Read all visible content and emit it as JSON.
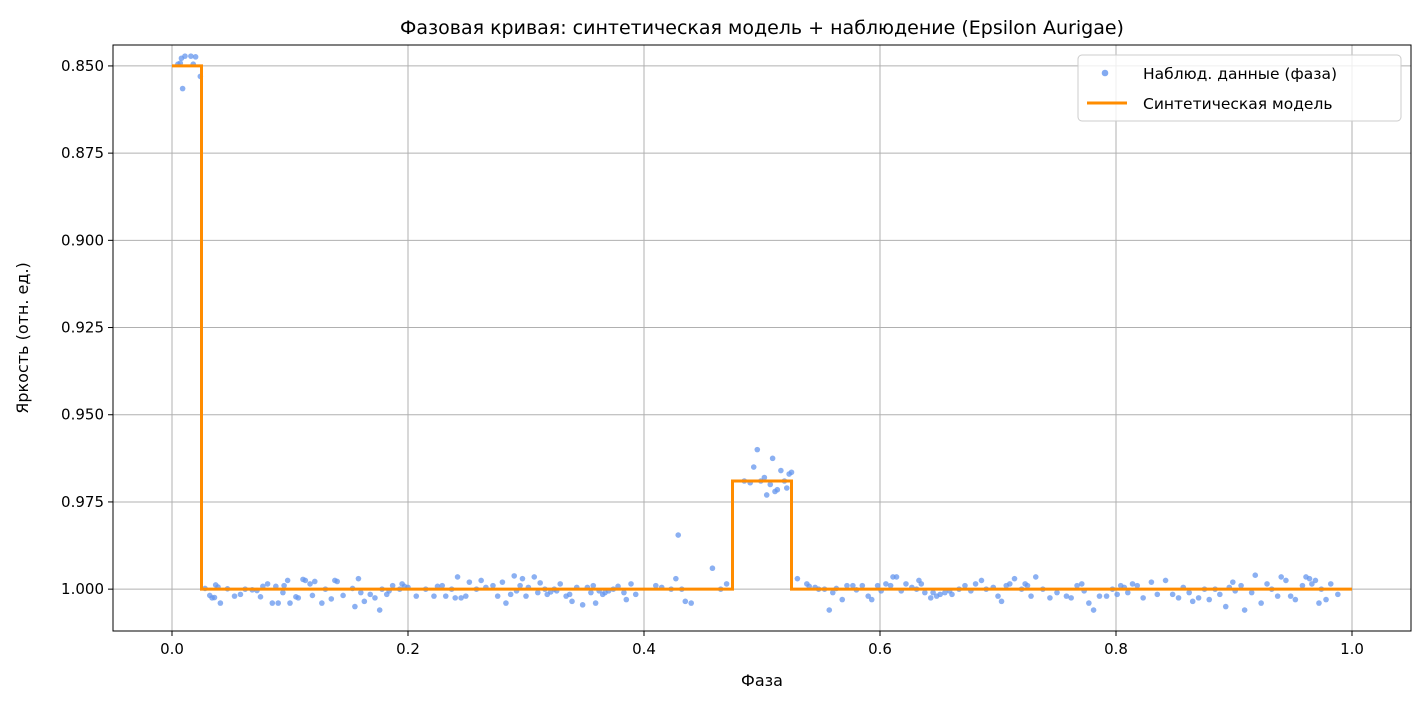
{
  "chart_data": {
    "type": "scatter",
    "title": "Фазовая кривая: синтетическая модель + наблюдение (Epsilon Aurigae)",
    "xlabel": "Фаза",
    "ylabel": "Яркость (отн. ед.)",
    "xlim": [
      -0.05,
      1.05
    ],
    "ylim": [
      1.012,
      0.844
    ],
    "y_inverted": true,
    "grid": true,
    "legend_position": "top-right",
    "x_ticks": [
      "0.0",
      "0.2",
      "0.4",
      "0.6",
      "0.8",
      "1.0"
    ],
    "x_tick_values": [
      0.0,
      0.2,
      0.4,
      0.6,
      0.8,
      1.0
    ],
    "y_ticks": [
      "0.850",
      "0.875",
      "0.900",
      "0.925",
      "0.950",
      "0.975",
      "1.000"
    ],
    "y_tick_values": [
      0.85,
      0.875,
      0.9,
      0.925,
      0.95,
      0.975,
      1.0
    ],
    "series": [
      {
        "name": "Наблюд. данные (фаза)",
        "kind": "scatter",
        "color": "#6495ed",
        "points": [
          [
            0.005,
            0.8495
          ],
          [
            0.007,
            0.8492
          ],
          [
            0.008,
            0.8478
          ],
          [
            0.011,
            0.8472
          ],
          [
            0.016,
            0.8472
          ],
          [
            0.018,
            0.8495
          ],
          [
            0.02,
            0.8474
          ],
          [
            0.024,
            0.853
          ],
          [
            0.009,
            0.8565
          ],
          [
            0.028,
            0.9998
          ],
          [
            0.032,
            1.0018
          ],
          [
            0.034,
            1.0025
          ],
          [
            0.036,
            1.0024
          ],
          [
            0.037,
            0.9988
          ],
          [
            0.039,
            0.9994
          ],
          [
            0.041,
            1.004
          ],
          [
            0.047,
            0.9999
          ],
          [
            0.053,
            1.002
          ],
          [
            0.058,
            1.0015
          ],
          [
            0.062,
            1.0
          ],
          [
            0.068,
            1.0002
          ],
          [
            0.072,
            1.0004
          ],
          [
            0.075,
            1.0022
          ],
          [
            0.077,
            0.9992
          ],
          [
            0.081,
            0.9985
          ],
          [
            0.085,
            1.004
          ],
          [
            0.088,
            0.9992
          ],
          [
            0.09,
            1.004
          ],
          [
            0.094,
            1.001
          ],
          [
            0.095,
            0.999
          ],
          [
            0.098,
            0.9975
          ],
          [
            0.1,
            1.004
          ],
          [
            0.105,
            1.0022
          ],
          [
            0.107,
            1.0025
          ],
          [
            0.111,
            0.9972
          ],
          [
            0.113,
            0.9975
          ],
          [
            0.117,
            0.9985
          ],
          [
            0.119,
            1.0018
          ],
          [
            0.121,
            0.9978
          ],
          [
            0.127,
            1.004
          ],
          [
            0.13,
            1.0
          ],
          [
            0.135,
            1.0028
          ],
          [
            0.138,
            0.9975
          ],
          [
            0.14,
            0.9978
          ],
          [
            0.145,
            1.0018
          ],
          [
            0.153,
            0.9998
          ],
          [
            0.155,
            1.005
          ],
          [
            0.158,
            0.997
          ],
          [
            0.16,
            1.001
          ],
          [
            0.163,
            1.0035
          ],
          [
            0.168,
            1.0015
          ],
          [
            0.172,
            1.0025
          ],
          [
            0.176,
            1.006
          ],
          [
            0.178,
            1.0
          ],
          [
            0.182,
            1.0015
          ],
          [
            0.184,
            1.0005
          ],
          [
            0.187,
            0.999
          ],
          [
            0.193,
            1.0
          ],
          [
            0.195,
            0.9985
          ],
          [
            0.197,
            0.9992
          ],
          [
            0.2,
            0.9995
          ],
          [
            0.207,
            1.002
          ],
          [
            0.215,
            1.0
          ],
          [
            0.222,
            1.002
          ],
          [
            0.225,
            0.9992
          ],
          [
            0.229,
            0.999
          ],
          [
            0.232,
            1.002
          ],
          [
            0.237,
            1.0
          ],
          [
            0.24,
            1.0025
          ],
          [
            0.242,
            0.9965
          ],
          [
            0.245,
            1.0025
          ],
          [
            0.249,
            1.002
          ],
          [
            0.252,
            0.998
          ],
          [
            0.258,
            1.0
          ],
          [
            0.262,
            0.9975
          ],
          [
            0.266,
            0.9995
          ],
          [
            0.272,
            0.999
          ],
          [
            0.276,
            1.002
          ],
          [
            0.28,
            0.998
          ],
          [
            0.283,
            1.004
          ],
          [
            0.287,
            1.0015
          ],
          [
            0.29,
            0.9962
          ],
          [
            0.292,
            1.0005
          ],
          [
            0.295,
            0.999
          ],
          [
            0.297,
            0.997
          ],
          [
            0.3,
            1.002
          ],
          [
            0.302,
            0.9995
          ],
          [
            0.307,
            0.9965
          ],
          [
            0.31,
            1.001
          ],
          [
            0.312,
            0.9982
          ],
          [
            0.316,
            1.0
          ],
          [
            0.318,
            1.0015
          ],
          [
            0.321,
            1.0008
          ],
          [
            0.324,
            1.0
          ],
          [
            0.326,
            1.0005
          ],
          [
            0.329,
            0.9985
          ],
          [
            0.334,
            1.002
          ],
          [
            0.337,
            1.0015
          ],
          [
            0.339,
            1.0035
          ],
          [
            0.343,
            0.9995
          ],
          [
            0.348,
            1.0045
          ],
          [
            0.352,
            0.9995
          ],
          [
            0.355,
            1.001
          ],
          [
            0.357,
            0.999
          ],
          [
            0.359,
            1.004
          ],
          [
            0.362,
            1.0005
          ],
          [
            0.365,
            1.0015
          ],
          [
            0.367,
            1.001
          ],
          [
            0.37,
            1.0005
          ],
          [
            0.374,
            1.0
          ],
          [
            0.378,
            0.9992
          ],
          [
            0.383,
            1.001
          ],
          [
            0.385,
            1.003
          ],
          [
            0.389,
            0.9985
          ],
          [
            0.393,
            1.0015
          ],
          [
            0.41,
            0.999
          ],
          [
            0.415,
            0.9995
          ],
          [
            0.423,
            1.0
          ],
          [
            0.427,
            0.997
          ],
          [
            0.429,
            0.9845
          ],
          [
            0.432,
            1.0
          ],
          [
            0.435,
            1.0035
          ],
          [
            0.44,
            1.004
          ],
          [
            0.458,
            0.994
          ],
          [
            0.465,
            1.0
          ],
          [
            0.47,
            0.9985
          ],
          [
            0.485,
            0.969
          ],
          [
            0.49,
            0.9695
          ],
          [
            0.493,
            0.965
          ],
          [
            0.496,
            0.96
          ],
          [
            0.499,
            0.969
          ],
          [
            0.502,
            0.968
          ],
          [
            0.504,
            0.973
          ],
          [
            0.507,
            0.97
          ],
          [
            0.509,
            0.9625
          ],
          [
            0.511,
            0.972
          ],
          [
            0.513,
            0.9715
          ],
          [
            0.516,
            0.966
          ],
          [
            0.519,
            0.969
          ],
          [
            0.521,
            0.971
          ],
          [
            0.523,
            0.967
          ],
          [
            0.525,
            0.9665
          ],
          [
            0.53,
            0.997
          ],
          [
            0.538,
            0.9985
          ],
          [
            0.54,
            0.9992
          ],
          [
            0.545,
            0.9995
          ],
          [
            0.548,
            1.0
          ],
          [
            0.553,
            1.0
          ],
          [
            0.557,
            1.006
          ],
          [
            0.56,
            1.001
          ],
          [
            0.563,
            0.9998
          ],
          [
            0.568,
            1.003
          ],
          [
            0.572,
            0.999
          ],
          [
            0.577,
            0.999
          ],
          [
            0.58,
            1.0002
          ],
          [
            0.585,
            0.999
          ],
          [
            0.59,
            1.002
          ],
          [
            0.593,
            1.003
          ],
          [
            0.598,
            0.999
          ],
          [
            0.601,
            1.0005
          ],
          [
            0.605,
            0.9985
          ],
          [
            0.609,
            0.999
          ],
          [
            0.611,
            0.9965
          ],
          [
            0.614,
            0.9965
          ],
          [
            0.618,
            1.0005
          ],
          [
            0.622,
            0.9985
          ],
          [
            0.627,
            0.9995
          ],
          [
            0.631,
            1.0
          ],
          [
            0.633,
            0.9975
          ],
          [
            0.635,
            0.9985
          ],
          [
            0.638,
            1.001
          ],
          [
            0.643,
            1.0025
          ],
          [
            0.645,
            1.001
          ],
          [
            0.648,
            1.002
          ],
          [
            0.651,
            1.0015
          ],
          [
            0.655,
            1.001
          ],
          [
            0.659,
            1.0005
          ],
          [
            0.661,
            1.0015
          ],
          [
            0.667,
            1.0
          ],
          [
            0.672,
            0.999
          ],
          [
            0.677,
            1.0005
          ],
          [
            0.681,
            0.9985
          ],
          [
            0.686,
            0.9975
          ],
          [
            0.69,
            1.0
          ],
          [
            0.696,
            0.9995
          ],
          [
            0.7,
            1.002
          ],
          [
            0.703,
            1.0035
          ],
          [
            0.707,
            0.999
          ],
          [
            0.71,
            0.9985
          ],
          [
            0.714,
            0.997
          ],
          [
            0.72,
            1.0
          ],
          [
            0.723,
            0.9985
          ],
          [
            0.725,
            0.999
          ],
          [
            0.728,
            1.002
          ],
          [
            0.732,
            0.9965
          ],
          [
            0.738,
            1.0
          ],
          [
            0.744,
            1.0025
          ],
          [
            0.75,
            1.001
          ],
          [
            0.758,
            1.002
          ],
          [
            0.762,
            1.0025
          ],
          [
            0.767,
            0.999
          ],
          [
            0.771,
            0.9985
          ],
          [
            0.773,
            1.0005
          ],
          [
            0.777,
            1.004
          ],
          [
            0.781,
            1.006
          ],
          [
            0.786,
            1.002
          ],
          [
            0.792,
            1.002
          ],
          [
            0.797,
            1.0
          ],
          [
            0.801,
            1.0015
          ],
          [
            0.804,
            0.999
          ],
          [
            0.807,
            0.9995
          ],
          [
            0.81,
            1.001
          ],
          [
            0.814,
            0.9985
          ],
          [
            0.818,
            0.999
          ],
          [
            0.823,
            1.0025
          ],
          [
            0.83,
            0.998
          ],
          [
            0.835,
            1.0015
          ],
          [
            0.842,
            0.9975
          ],
          [
            0.848,
            1.0015
          ],
          [
            0.853,
            1.0025
          ],
          [
            0.857,
            0.9995
          ],
          [
            0.862,
            1.001
          ],
          [
            0.865,
            1.0035
          ],
          [
            0.87,
            1.0025
          ],
          [
            0.875,
            1.0
          ],
          [
            0.879,
            1.003
          ],
          [
            0.884,
            1.0
          ],
          [
            0.888,
            1.0015
          ],
          [
            0.893,
            1.005
          ],
          [
            0.896,
            0.9995
          ],
          [
            0.899,
            0.998
          ],
          [
            0.901,
            1.0005
          ],
          [
            0.906,
            0.999
          ],
          [
            0.909,
            1.006
          ],
          [
            0.915,
            1.001
          ],
          [
            0.918,
            0.996
          ],
          [
            0.923,
            1.004
          ],
          [
            0.928,
            0.9985
          ],
          [
            0.932,
            1.0
          ],
          [
            0.937,
            1.002
          ],
          [
            0.94,
            0.9965
          ],
          [
            0.944,
            0.9975
          ],
          [
            0.948,
            1.002
          ],
          [
            0.952,
            1.003
          ],
          [
            0.958,
            0.999
          ],
          [
            0.961,
            0.9965
          ],
          [
            0.964,
            0.997
          ],
          [
            0.966,
            0.9985
          ],
          [
            0.969,
            0.9975
          ],
          [
            0.972,
            1.004
          ],
          [
            0.974,
            1.0
          ],
          [
            0.978,
            1.003
          ],
          [
            0.982,
            0.9985
          ],
          [
            0.988,
            1.0015
          ]
        ]
      },
      {
        "name": "Синтетическая модель",
        "kind": "step-line",
        "color": "#ff8c00",
        "points": [
          [
            0.0,
            0.85
          ],
          [
            0.025,
            0.85
          ],
          [
            0.025,
            1.0
          ],
          [
            0.475,
            1.0
          ],
          [
            0.475,
            0.969
          ],
          [
            0.525,
            0.969
          ],
          [
            0.525,
            1.0
          ],
          [
            1.0,
            1.0
          ]
        ]
      }
    ]
  }
}
